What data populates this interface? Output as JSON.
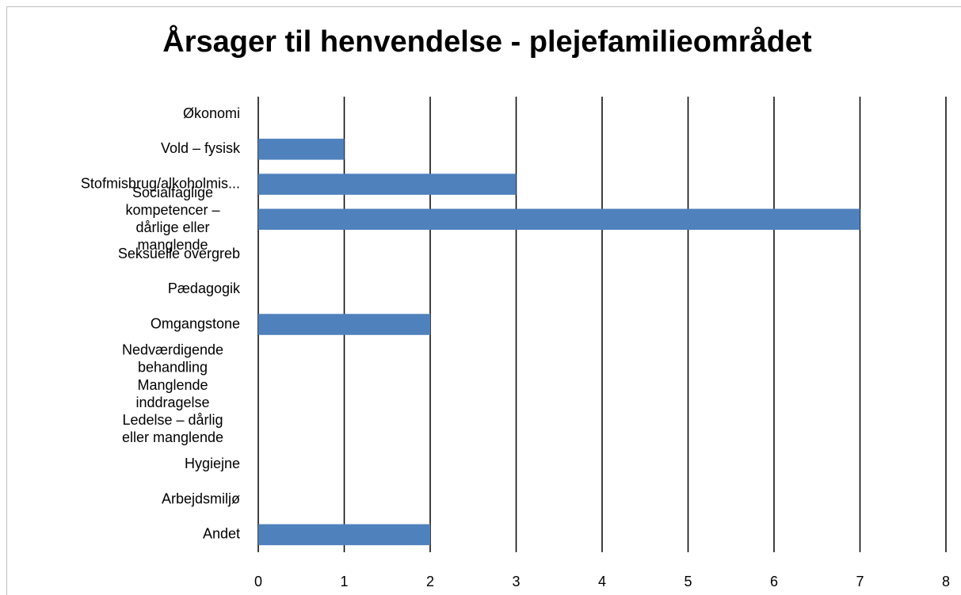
{
  "chart_data": {
    "type": "barh",
    "title": "Årsager til henvendelse - plejefamilieområdet",
    "categories": [
      "Økonomi",
      "Vold – fysisk",
      "Stofmisbrug/alkoholmis...",
      "Socialfaglige kompetencer – dårlige eller manglende",
      "Seksuelle overgreb",
      "Pædagogik",
      "Omgangstone",
      "Nedværdigende behandling",
      "Manglende inddragelse",
      "Ledelse – dårlig eller manglende",
      "Hygiejne",
      "Arbejdsmiljø",
      "Andet"
    ],
    "values": [
      0,
      1,
      3,
      7,
      0,
      0,
      2,
      0,
      0,
      0,
      0,
      0,
      2
    ],
    "color": "#4f81bd",
    "xlim": [
      0,
      8
    ],
    "xticks": [
      0,
      1,
      2,
      3,
      4,
      5,
      6,
      7,
      8
    ],
    "grid": true
  }
}
